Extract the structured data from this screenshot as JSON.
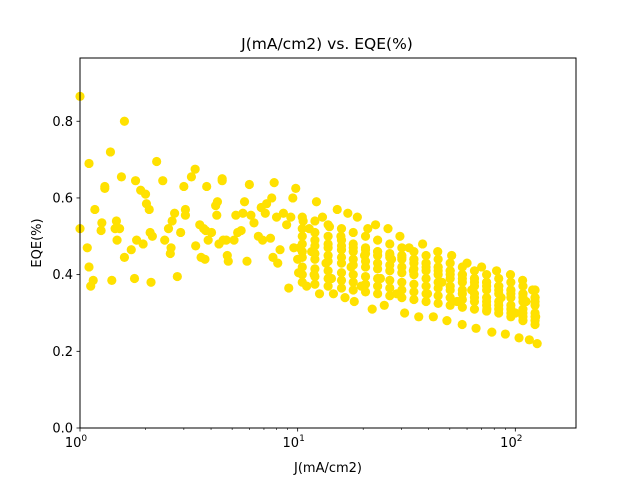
{
  "chart_data": {
    "type": "scatter",
    "title": "J(mA/cm2) vs. EQE(%)",
    "xlabel": "J(mA/cm2)",
    "ylabel": "EQE(%)",
    "xscale": "log",
    "xlim": [
      1,
      190
    ],
    "ylim": [
      0,
      0.965
    ],
    "x_tick_labels": [
      {
        "value": 1,
        "base": "10",
        "exp": "0"
      },
      {
        "value": 10,
        "base": "10",
        "exp": "1"
      },
      {
        "value": 100,
        "base": "10",
        "exp": "2"
      }
    ],
    "y_ticks": [
      0.0,
      0.2,
      0.4,
      0.6,
      0.8
    ],
    "y_tick_labels": [
      "0.0",
      "0.2",
      "0.4",
      "0.6",
      "0.8"
    ],
    "grid": false,
    "marker_color": "#FFE100",
    "points": [
      [
        1.0,
        0.865
      ],
      [
        1.1,
        0.69
      ],
      [
        1.38,
        0.72
      ],
      [
        1.6,
        0.8
      ],
      [
        2.25,
        0.695
      ],
      [
        1.0,
        0.52
      ],
      [
        1.08,
        0.47
      ],
      [
        1.1,
        0.42
      ],
      [
        1.12,
        0.37
      ],
      [
        1.15,
        0.385
      ],
      [
        1.17,
        0.57
      ],
      [
        1.25,
        0.515
      ],
      [
        1.26,
        0.535
      ],
      [
        1.3,
        0.63
      ],
      [
        1.3,
        0.625
      ],
      [
        1.4,
        0.385
      ],
      [
        1.45,
        0.52
      ],
      [
        1.47,
        0.54
      ],
      [
        1.48,
        0.49
      ],
      [
        1.52,
        0.52
      ],
      [
        1.55,
        0.655
      ],
      [
        1.6,
        0.445
      ],
      [
        1.72,
        0.465
      ],
      [
        1.78,
        0.39
      ],
      [
        1.8,
        0.645
      ],
      [
        1.82,
        0.49
      ],
      [
        1.9,
        0.62
      ],
      [
        1.95,
        0.48
      ],
      [
        2.0,
        0.61
      ],
      [
        2.02,
        0.585
      ],
      [
        2.08,
        0.57
      ],
      [
        2.1,
        0.51
      ],
      [
        2.15,
        0.5
      ],
      [
        2.12,
        0.38
      ],
      [
        2.4,
        0.645
      ],
      [
        2.45,
        0.49
      ],
      [
        2.55,
        0.52
      ],
      [
        2.6,
        0.455
      ],
      [
        2.62,
        0.47
      ],
      [
        2.65,
        0.54
      ],
      [
        2.72,
        0.56
      ],
      [
        2.8,
        0.395
      ],
      [
        2.9,
        0.51
      ],
      [
        3.0,
        0.63
      ],
      [
        3.05,
        0.57
      ],
      [
        3.05,
        0.555
      ],
      [
        3.25,
        0.655
      ],
      [
        3.38,
        0.675
      ],
      [
        3.4,
        0.475
      ],
      [
        3.55,
        0.53
      ],
      [
        3.6,
        0.445
      ],
      [
        3.7,
        0.52
      ],
      [
        3.75,
        0.44
      ],
      [
        3.78,
        0.515
      ],
      [
        3.82,
        0.63
      ],
      [
        3.88,
        0.49
      ],
      [
        4.02,
        0.51
      ],
      [
        4.2,
        0.58
      ],
      [
        4.25,
        0.555
      ],
      [
        4.28,
        0.59
      ],
      [
        4.35,
        0.48
      ],
      [
        4.5,
        0.645
      ],
      [
        4.5,
        0.65
      ],
      [
        4.55,
        0.49
      ],
      [
        4.7,
        0.49
      ],
      [
        4.75,
        0.45
      ],
      [
        4.8,
        0.435
      ],
      [
        5.1,
        0.49
      ],
      [
        5.2,
        0.555
      ],
      [
        5.3,
        0.51
      ],
      [
        5.5,
        0.515
      ],
      [
        5.6,
        0.56
      ],
      [
        5.7,
        0.59
      ],
      [
        5.85,
        0.435
      ],
      [
        6.0,
        0.635
      ],
      [
        6.1,
        0.555
      ],
      [
        6.3,
        0.535
      ],
      [
        6.6,
        0.5
      ],
      [
        6.8,
        0.575
      ],
      [
        6.9,
        0.49
      ],
      [
        7.1,
        0.56
      ],
      [
        7.2,
        0.585
      ],
      [
        7.5,
        0.495
      ],
      [
        7.6,
        0.6
      ],
      [
        7.8,
        0.64
      ],
      [
        7.7,
        0.445
      ],
      [
        8.0,
        0.55
      ],
      [
        8.1,
        0.43
      ],
      [
        8.3,
        0.465
      ],
      [
        8.6,
        0.56
      ],
      [
        8.9,
        0.53
      ],
      [
        9.1,
        0.365
      ],
      [
        9.3,
        0.55
      ],
      [
        9.5,
        0.6
      ],
      [
        9.8,
        0.625
      ],
      [
        9.6,
        0.47
      ],
      [
        10.0,
        0.44
      ],
      [
        10.1,
        0.405
      ],
      [
        10.2,
        0.47
      ],
      [
        10.6,
        0.54
      ],
      [
        11.0,
        0.37
      ],
      [
        11.3,
        0.52
      ],
      [
        11.6,
        0.46
      ],
      [
        11.9,
        0.4
      ],
      [
        12.2,
        0.59
      ],
      [
        12.6,
        0.35
      ],
      [
        13.0,
        0.55
      ],
      [
        13.5,
        0.43
      ],
      [
        14.0,
        0.525
      ],
      [
        14.3,
        0.39
      ],
      [
        14.6,
        0.35
      ],
      [
        15.2,
        0.57
      ],
      [
        15.8,
        0.5
      ],
      [
        16.5,
        0.34
      ],
      [
        17.0,
        0.56
      ],
      [
        17.6,
        0.42
      ],
      [
        18.2,
        0.33
      ],
      [
        18.8,
        0.55
      ],
      [
        19.6,
        0.37
      ],
      [
        20.3,
        0.45
      ],
      [
        21.0,
        0.52
      ],
      [
        22.0,
        0.31
      ],
      [
        22.8,
        0.53
      ],
      [
        24.0,
        0.39
      ],
      [
        25.0,
        0.32
      ],
      [
        26.0,
        0.52
      ],
      [
        27.0,
        0.44
      ],
      [
        28.5,
        0.35
      ],
      [
        29.5,
        0.5
      ],
      [
        31.0,
        0.3
      ],
      [
        32.5,
        0.47
      ],
      [
        34.0,
        0.41
      ],
      [
        36.0,
        0.29
      ],
      [
        37.5,
        0.48
      ],
      [
        39.5,
        0.35
      ],
      [
        42.0,
        0.29
      ],
      [
        44.0,
        0.46
      ],
      [
        46.0,
        0.38
      ],
      [
        48.5,
        0.28
      ],
      [
        51.0,
        0.45
      ],
      [
        54.0,
        0.33
      ],
      [
        57.0,
        0.27
      ],
      [
        60.0,
        0.43
      ],
      [
        63.0,
        0.36
      ],
      [
        66.0,
        0.26
      ],
      [
        70.0,
        0.42
      ],
      [
        74.0,
        0.31
      ],
      [
        78.0,
        0.25
      ],
      [
        82.0,
        0.41
      ],
      [
        86.0,
        0.34
      ],
      [
        90.0,
        0.245
      ],
      [
        95.0,
        0.4
      ],
      [
        100.0,
        0.3
      ],
      [
        104.0,
        0.235
      ],
      [
        108.0,
        0.385
      ],
      [
        112.0,
        0.33
      ],
      [
        116.0,
        0.23
      ],
      [
        120.0,
        0.36
      ],
      [
        124.0,
        0.29
      ],
      [
        126.0,
        0.22
      ],
      [
        10.5,
        0.55
      ],
      [
        12.0,
        0.54
      ],
      [
        13.8,
        0.53
      ],
      [
        15.9,
        0.52
      ],
      [
        18.0,
        0.51
      ],
      [
        20.5,
        0.5
      ],
      [
        23.3,
        0.49
      ],
      [
        26.5,
        0.48
      ],
      [
        30.1,
        0.47
      ],
      [
        34.2,
        0.46
      ],
      [
        38.9,
        0.45
      ],
      [
        44.2,
        0.44
      ],
      [
        50.2,
        0.43
      ],
      [
        57.1,
        0.42
      ],
      [
        64.9,
        0.41
      ],
      [
        73.8,
        0.4
      ],
      [
        83.9,
        0.39
      ],
      [
        95.4,
        0.38
      ],
      [
        108.4,
        0.37
      ],
      [
        123.2,
        0.36
      ],
      [
        10.5,
        0.48
      ],
      [
        12.0,
        0.475
      ],
      [
        13.8,
        0.47
      ],
      [
        15.9,
        0.465
      ],
      [
        18.0,
        0.46
      ],
      [
        20.5,
        0.455
      ],
      [
        23.3,
        0.45
      ],
      [
        26.5,
        0.445
      ],
      [
        30.1,
        0.44
      ],
      [
        34.2,
        0.43
      ],
      [
        38.9,
        0.42
      ],
      [
        44.2,
        0.41
      ],
      [
        50.2,
        0.4
      ],
      [
        57.1,
        0.39
      ],
      [
        64.9,
        0.38
      ],
      [
        73.8,
        0.37
      ],
      [
        83.9,
        0.36
      ],
      [
        95.4,
        0.35
      ],
      [
        108.4,
        0.34
      ],
      [
        123.2,
        0.33
      ],
      [
        10.5,
        0.445
      ],
      [
        12.0,
        0.44
      ],
      [
        13.8,
        0.435
      ],
      [
        15.9,
        0.43
      ],
      [
        18.0,
        0.425
      ],
      [
        20.5,
        0.42
      ],
      [
        23.3,
        0.415
      ],
      [
        26.5,
        0.41
      ],
      [
        30.1,
        0.405
      ],
      [
        34.2,
        0.4
      ],
      [
        38.9,
        0.39
      ],
      [
        44.2,
        0.38
      ],
      [
        50.2,
        0.37
      ],
      [
        57.1,
        0.36
      ],
      [
        64.9,
        0.35
      ],
      [
        73.8,
        0.34
      ],
      [
        83.9,
        0.33
      ],
      [
        95.4,
        0.32
      ],
      [
        108.4,
        0.31
      ],
      [
        123.2,
        0.3
      ],
      [
        10.5,
        0.5
      ],
      [
        12.0,
        0.49
      ],
      [
        13.8,
        0.48
      ],
      [
        15.9,
        0.475
      ],
      [
        18.0,
        0.47
      ],
      [
        20.5,
        0.465
      ],
      [
        23.3,
        0.46
      ],
      [
        26.5,
        0.455
      ],
      [
        30.1,
        0.45
      ],
      [
        34.2,
        0.44
      ],
      [
        38.9,
        0.43
      ],
      [
        44.2,
        0.42
      ],
      [
        50.2,
        0.41
      ],
      [
        57.1,
        0.4
      ],
      [
        64.9,
        0.39
      ],
      [
        73.8,
        0.38
      ],
      [
        83.9,
        0.37
      ],
      [
        95.4,
        0.36
      ],
      [
        108.4,
        0.35
      ],
      [
        123.2,
        0.34
      ],
      [
        10.5,
        0.4
      ],
      [
        12.0,
        0.395
      ],
      [
        13.8,
        0.39
      ],
      [
        15.9,
        0.385
      ],
      [
        18.0,
        0.38
      ],
      [
        20.5,
        0.375
      ],
      [
        23.3,
        0.37
      ],
      [
        26.5,
        0.365
      ],
      [
        30.1,
        0.36
      ],
      [
        34.2,
        0.355
      ],
      [
        38.9,
        0.35
      ],
      [
        44.2,
        0.345
      ],
      [
        50.2,
        0.34
      ],
      [
        57.1,
        0.335
      ],
      [
        64.9,
        0.33
      ],
      [
        73.8,
        0.32
      ],
      [
        83.9,
        0.31
      ],
      [
        95.4,
        0.3
      ],
      [
        108.4,
        0.29
      ],
      [
        123.2,
        0.28
      ],
      [
        10.5,
        0.46
      ],
      [
        12.0,
        0.455
      ],
      [
        13.8,
        0.45
      ],
      [
        15.9,
        0.445
      ],
      [
        18.0,
        0.44
      ],
      [
        20.5,
        0.435
      ],
      [
        23.3,
        0.43
      ],
      [
        26.5,
        0.425
      ],
      [
        30.1,
        0.42
      ],
      [
        34.2,
        0.415
      ],
      [
        38.9,
        0.41
      ],
      [
        44.2,
        0.4
      ],
      [
        50.2,
        0.39
      ],
      [
        57.1,
        0.38
      ],
      [
        64.9,
        0.37
      ],
      [
        73.8,
        0.36
      ],
      [
        83.9,
        0.35
      ],
      [
        95.4,
        0.34
      ],
      [
        108.4,
        0.33
      ],
      [
        123.2,
        0.32
      ],
      [
        10.5,
        0.42
      ],
      [
        12.0,
        0.415
      ],
      [
        13.8,
        0.41
      ],
      [
        15.9,
        0.405
      ],
      [
        18.0,
        0.4
      ],
      [
        20.5,
        0.395
      ],
      [
        23.3,
        0.39
      ],
      [
        26.5,
        0.385
      ],
      [
        30.1,
        0.38
      ],
      [
        34.2,
        0.375
      ],
      [
        38.9,
        0.37
      ],
      [
        44.2,
        0.365
      ],
      [
        50.2,
        0.36
      ],
      [
        57.1,
        0.35
      ],
      [
        64.9,
        0.34
      ],
      [
        73.8,
        0.33
      ],
      [
        83.9,
        0.32
      ],
      [
        95.4,
        0.31
      ],
      [
        108.4,
        0.3
      ],
      [
        123.2,
        0.29
      ],
      [
        10.5,
        0.52
      ],
      [
        12.0,
        0.51
      ],
      [
        13.8,
        0.5
      ],
      [
        15.9,
        0.49
      ],
      [
        18.0,
        0.48
      ],
      [
        20.5,
        0.47
      ],
      [
        23.3,
        0.46
      ],
      [
        26.5,
        0.45
      ],
      [
        30.1,
        0.445
      ],
      [
        34.2,
        0.44
      ],
      [
        38.9,
        0.43
      ],
      [
        44.2,
        0.42
      ],
      [
        50.2,
        0.41
      ],
      [
        57.1,
        0.4
      ],
      [
        64.9,
        0.39
      ],
      [
        73.8,
        0.38
      ],
      [
        83.9,
        0.37
      ],
      [
        95.4,
        0.36
      ],
      [
        108.4,
        0.35
      ],
      [
        123.2,
        0.34
      ],
      [
        10.5,
        0.38
      ],
      [
        12.0,
        0.375
      ],
      [
        13.8,
        0.37
      ],
      [
        15.9,
        0.365
      ],
      [
        18.0,
        0.36
      ],
      [
        20.5,
        0.355
      ],
      [
        23.3,
        0.35
      ],
      [
        26.5,
        0.345
      ],
      [
        30.1,
        0.34
      ],
      [
        34.2,
        0.335
      ],
      [
        38.9,
        0.33
      ],
      [
        44.2,
        0.325
      ],
      [
        50.2,
        0.32
      ],
      [
        57.1,
        0.315
      ],
      [
        64.9,
        0.31
      ],
      [
        73.8,
        0.305
      ],
      [
        83.9,
        0.3
      ],
      [
        95.4,
        0.29
      ],
      [
        108.4,
        0.28
      ],
      [
        123.2,
        0.27
      ]
    ]
  }
}
